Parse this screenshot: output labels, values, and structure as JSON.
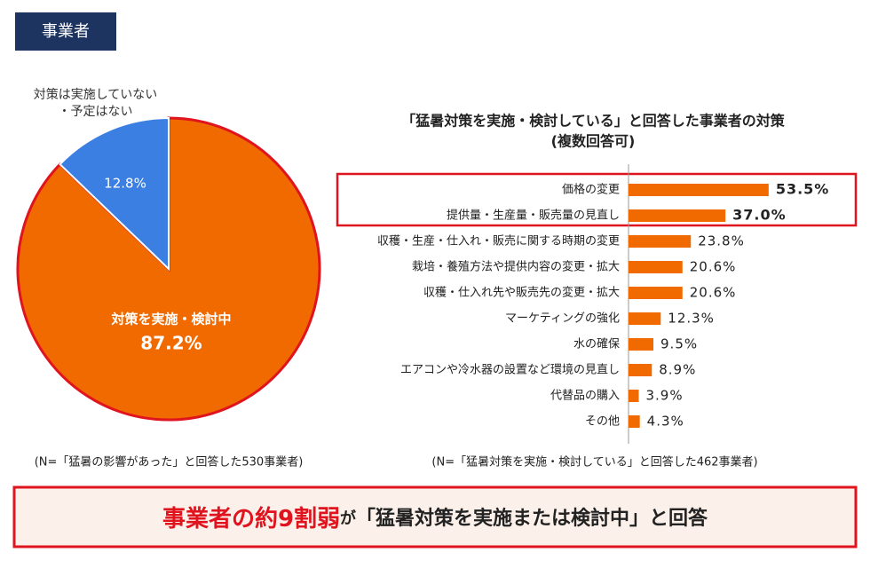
{
  "badge": "事業者",
  "chart_data": [
    {
      "type": "pie",
      "categories": [
        "対策を実施・検討中",
        "対策は実施していない\n・予定はない"
      ],
      "values": [
        87.2,
        12.8
      ],
      "value_labels": [
        "87.2%",
        "12.8%"
      ],
      "colors": [
        "#f06a00",
        "#3b7fe3"
      ],
      "note": "(N=「猛暑の影響があった」と回答した530事業者)"
    },
    {
      "type": "hbar",
      "title": "「猛暑対策を実施・検討している」と回答した事業者の対策",
      "subtitle": "(複数回答可)",
      "categories": [
        "価格の変更",
        "提供量・生産量・販売量の見直し",
        "収穫・生産・仕入れ・販売に関する時期の変更",
        "栽培・養殖方法や提供内容の変更・拡大",
        "収穫・仕入れ先や販売先の変更・拡大",
        "マーケティングの強化",
        "水の確保",
        "エアコンや冷水器の設置など環境の見直し",
        "代替品の購入",
        "その他"
      ],
      "values": [
        53.5,
        37.0,
        23.8,
        20.6,
        20.6,
        12.3,
        9.5,
        8.9,
        3.9,
        4.3
      ],
      "value_labels": [
        "53.5%",
        "37.0%",
        "23.8%",
        "20.6%",
        "20.6%",
        "12.3%",
        "9.5%",
        "8.9%",
        "3.9%",
        "4.3%"
      ],
      "color": "#f06a00",
      "xlim": [
        0,
        80
      ],
      "note": "(N=「猛暑対策を実施・検討している」と回答した462事業者)"
    }
  ],
  "banner": [
    "事業者の約9割弱",
    "が",
    "「猛暑対策を実施または検討中」と回答"
  ]
}
